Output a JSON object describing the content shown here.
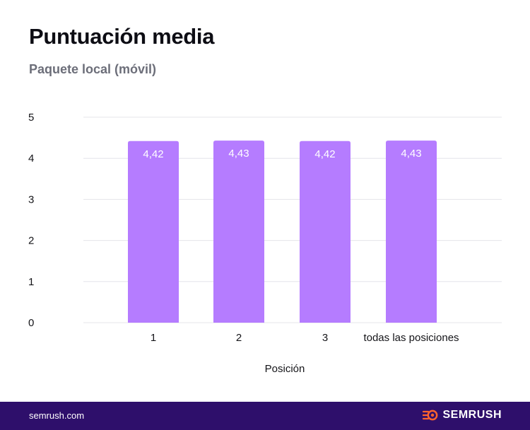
{
  "chart_data": {
    "type": "bar",
    "title": "Puntuación media",
    "subtitle": "Paquete local (móvil)",
    "categories": [
      "1",
      "2",
      "3",
      "todas las posiciones"
    ],
    "values": [
      4.42,
      4.43,
      4.42,
      4.43
    ],
    "value_labels": [
      "4,42",
      "4,43",
      "4,42",
      "4,43"
    ],
    "xlabel": "Posición",
    "ylabel": "",
    "ylim": [
      0,
      5
    ],
    "yticks": [
      "0",
      "1",
      "2",
      "3",
      "4",
      "5"
    ],
    "grid": true,
    "colors": {
      "bar": "#b57cff",
      "grid": "#e4e4ea",
      "text": "#141418"
    }
  },
  "footer": {
    "url": "semrush.com",
    "brand": "SEMRUSH",
    "logo_icon": "semrush-fire-logo-icon",
    "background": "#2e0f6b",
    "logo_color": "#ff642d"
  }
}
